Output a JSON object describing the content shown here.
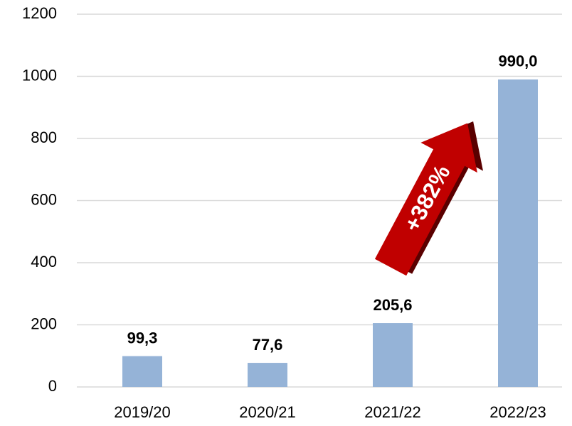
{
  "chart_data": {
    "type": "bar",
    "categories": [
      "2019/20",
      "2020/21",
      "2021/22",
      "2022/23"
    ],
    "values": [
      99.3,
      77.6,
      205.6,
      990.0
    ],
    "value_labels": [
      "99,3",
      "77,6",
      "205,6",
      "990,0"
    ],
    "color": "#95b3d7",
    "ylim": [
      0,
      1200
    ],
    "yticks": [
      0,
      200,
      400,
      600,
      800,
      1000,
      1200
    ],
    "grid": true,
    "annotation": "+382%"
  }
}
